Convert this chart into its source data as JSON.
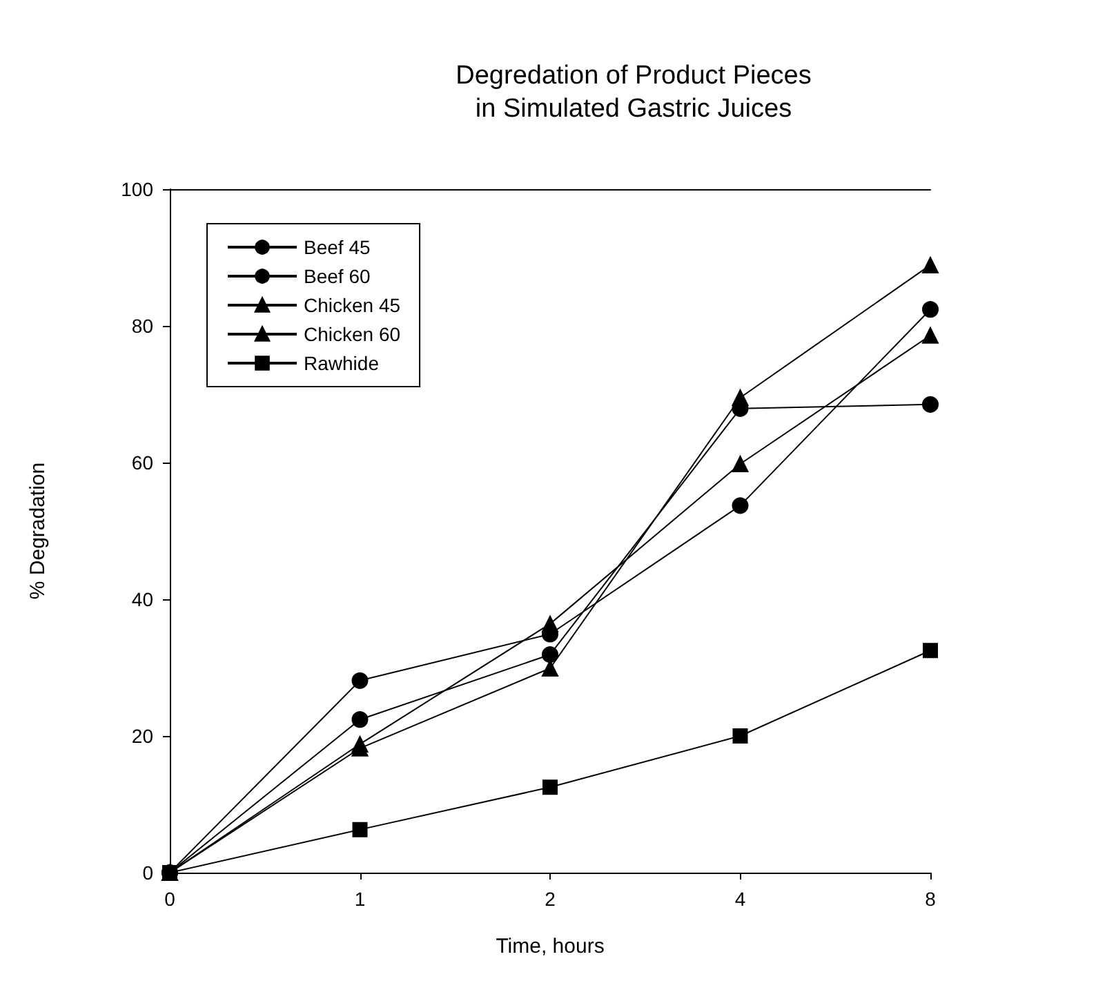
{
  "chart_data": {
    "type": "line",
    "title": "Degredation of Product Pieces\nin Simulated Gastric Juices",
    "xlabel": "Time, hours",
    "ylabel": "% Degradation",
    "categories": [
      "0",
      "1",
      "2",
      "4",
      "8"
    ],
    "ylim": [
      0,
      100
    ],
    "yticks": [
      0,
      20,
      40,
      60,
      80,
      100
    ],
    "grid": false,
    "legend": "top left",
    "line_style": "solid",
    "series": [
      {
        "name": "Beef 45",
        "color": "#000000",
        "marker": "circle",
        "values": [
          0,
          22.4,
          31.9,
          67.9,
          68.5
        ]
      },
      {
        "name": "Beef 60",
        "color": "#000000",
        "marker": "circle",
        "values": [
          0,
          28.1,
          34.9,
          53.7,
          82.4
        ]
      },
      {
        "name": "Chicken 45",
        "color": "#000000",
        "marker": "triangle",
        "values": [
          0,
          18.8,
          36.4,
          59.8,
          78.6
        ]
      },
      {
        "name": "Chicken 60",
        "color": "#000000",
        "marker": "triangle",
        "values": [
          0,
          18.2,
          29.9,
          69.5,
          88.9
        ]
      },
      {
        "name": "Rawhide",
        "color": "#000000",
        "marker": "square",
        "values": [
          0,
          6.3,
          12.5,
          20,
          32.5
        ]
      }
    ]
  }
}
